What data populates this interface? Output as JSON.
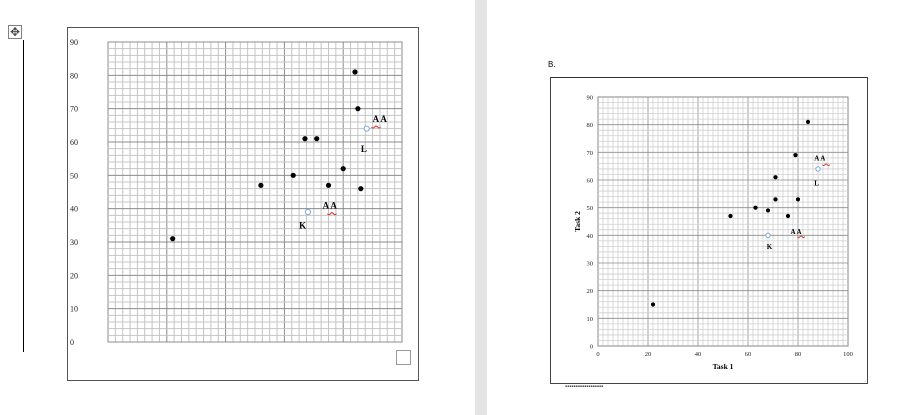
{
  "left_chart": {
    "y_ticks": [
      0,
      10,
      20,
      30,
      40,
      50,
      60,
      70,
      80,
      90
    ],
    "annotations": [
      "A A",
      "L",
      "A A",
      "K"
    ]
  },
  "right_chart": {
    "section_label": "B.",
    "xlabel": "Task 1",
    "ylabel": "Task 2",
    "x_ticks": [
      0,
      20,
      40,
      60,
      80,
      100
    ],
    "y_ticks": [
      0,
      10,
      20,
      30,
      40,
      50,
      60,
      70,
      80,
      90
    ],
    "annotations": [
      "A A",
      "L",
      "A A",
      "K"
    ]
  },
  "chart_data": [
    {
      "type": "scatter",
      "ylim": [
        0,
        90
      ],
      "series": [
        {
          "marker": "filled",
          "points": [
            {
              "x": 22,
              "y": 31
            },
            {
              "x": 52,
              "y": 47
            },
            {
              "x": 63,
              "y": 50
            },
            {
              "x": 67,
              "y": 61
            },
            {
              "x": 71,
              "y": 61
            },
            {
              "x": 75,
              "y": 47
            },
            {
              "x": 80,
              "y": 52
            },
            {
              "x": 84,
              "y": 81
            },
            {
              "x": 85,
              "y": 70
            },
            {
              "x": 86,
              "y": 46
            }
          ]
        },
        {
          "marker": "hollow",
          "points": [
            {
              "x": 68,
              "y": 39
            },
            {
              "x": 88,
              "y": 64
            }
          ]
        }
      ]
    },
    {
      "type": "scatter",
      "xlabel": "Task 1",
      "ylabel": "Task 2",
      "xlim": [
        0,
        100
      ],
      "ylim": [
        0,
        90
      ],
      "series": [
        {
          "marker": "filled",
          "points": [
            {
              "x": 22,
              "y": 15
            },
            {
              "x": 53,
              "y": 47
            },
            {
              "x": 63,
              "y": 50
            },
            {
              "x": 68,
              "y": 49
            },
            {
              "x": 71,
              "y": 61
            },
            {
              "x": 71,
              "y": 53
            },
            {
              "x": 76,
              "y": 47
            },
            {
              "x": 79,
              "y": 69
            },
            {
              "x": 80,
              "y": 53
            },
            {
              "x": 84,
              "y": 81
            }
          ]
        },
        {
          "marker": "hollow",
          "points": [
            {
              "x": 68,
              "y": 40
            },
            {
              "x": 88,
              "y": 64
            }
          ]
        }
      ]
    }
  ]
}
